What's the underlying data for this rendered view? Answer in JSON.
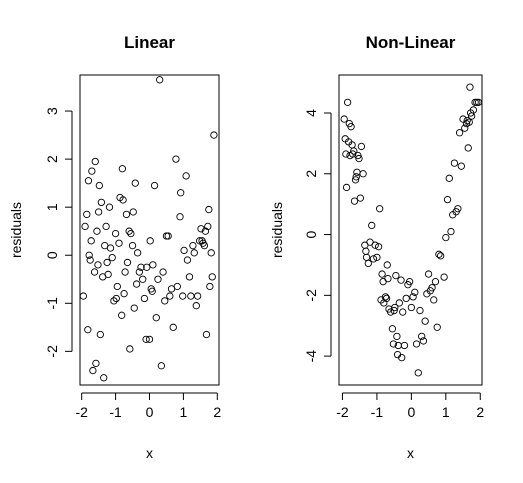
{
  "chart_data": [
    {
      "type": "scatter",
      "title": "Linear",
      "xlabel": "x",
      "ylabel": "residuals",
      "xlim": [
        -2.05,
        2.05
      ],
      "ylim": [
        -2.7,
        3.75
      ],
      "xticks": [
        -2,
        -1,
        0,
        1,
        2
      ],
      "yticks": [
        -2,
        -1,
        0,
        1,
        2,
        3
      ],
      "grid": false,
      "legend": "none",
      "points": [
        [
          -1.95,
          -0.85
        ],
        [
          -1.9,
          0.6
        ],
        [
          -1.85,
          0.85
        ],
        [
          -1.82,
          -1.55
        ],
        [
          -1.8,
          1.55
        ],
        [
          -1.78,
          0.0
        ],
        [
          -1.75,
          -0.1
        ],
        [
          -1.72,
          0.3
        ],
        [
          -1.7,
          1.75
        ],
        [
          -1.67,
          -2.4
        ],
        [
          -1.62,
          -0.35
        ],
        [
          -1.6,
          1.95
        ],
        [
          -1.58,
          -2.25
        ],
        [
          -1.55,
          0.5
        ],
        [
          -1.52,
          -0.2
        ],
        [
          -1.5,
          0.9
        ],
        [
          -1.48,
          1.45
        ],
        [
          -1.45,
          -1.65
        ],
        [
          -1.42,
          1.1
        ],
        [
          -1.38,
          -0.45
        ],
        [
          -1.35,
          -2.55
        ],
        [
          -1.32,
          0.2
        ],
        [
          -1.28,
          0.6
        ],
        [
          -1.25,
          -0.15
        ],
        [
          -1.22,
          -0.4
        ],
        [
          -1.18,
          1.0
        ],
        [
          -1.15,
          0.15
        ],
        [
          -1.1,
          -0.05
        ],
        [
          -1.05,
          -0.95
        ],
        [
          -1.0,
          0.45
        ],
        [
          -0.98,
          -0.9
        ],
        [
          -0.95,
          -0.65
        ],
        [
          -0.9,
          0.25
        ],
        [
          -0.87,
          1.2
        ],
        [
          -0.82,
          -1.25
        ],
        [
          -0.8,
          1.8
        ],
        [
          -0.78,
          1.15
        ],
        [
          -0.75,
          -0.8
        ],
        [
          -0.72,
          -0.35
        ],
        [
          -0.68,
          0.85
        ],
        [
          -0.65,
          -0.15
        ],
        [
          -0.6,
          0.5
        ],
        [
          -0.58,
          -1.95
        ],
        [
          -0.55,
          0.45
        ],
        [
          -0.5,
          0.2
        ],
        [
          -0.48,
          0.9
        ],
        [
          -0.45,
          -1.1
        ],
        [
          -0.42,
          1.5
        ],
        [
          -0.38,
          -0.6
        ],
        [
          -0.35,
          0.05
        ],
        [
          -0.3,
          -0.35
        ],
        [
          -0.25,
          -0.25
        ],
        [
          -0.2,
          -0.5
        ],
        [
          -0.15,
          -0.9
        ],
        [
          -0.1,
          -1.75
        ],
        [
          -0.08,
          -0.25
        ],
        [
          0.0,
          -1.75
        ],
        [
          0.02,
          0.3
        ],
        [
          0.05,
          -0.7
        ],
        [
          0.08,
          -0.75
        ],
        [
          0.1,
          -0.2
        ],
        [
          0.15,
          1.45
        ],
        [
          0.2,
          -1.3
        ],
        [
          0.25,
          -0.5
        ],
        [
          0.3,
          3.65
        ],
        [
          0.35,
          -2.3
        ],
        [
          0.4,
          -0.35
        ],
        [
          0.45,
          -0.95
        ],
        [
          0.5,
          0.4
        ],
        [
          0.55,
          0.4
        ],
        [
          0.6,
          -0.85
        ],
        [
          0.65,
          -0.7
        ],
        [
          0.7,
          -1.5
        ],
        [
          0.78,
          2.0
        ],
        [
          0.82,
          -0.65
        ],
        [
          0.9,
          0.8
        ],
        [
          0.92,
          1.3
        ],
        [
          0.98,
          -0.85
        ],
        [
          1.02,
          0.1
        ],
        [
          1.08,
          1.65
        ],
        [
          1.12,
          -0.1
        ],
        [
          1.18,
          -0.45
        ],
        [
          1.22,
          -0.85
        ],
        [
          1.28,
          0.2
        ],
        [
          1.32,
          0.05
        ],
        [
          1.38,
          -1.05
        ],
        [
          1.42,
          -0.85
        ],
        [
          1.48,
          0.3
        ],
        [
          1.52,
          0.55
        ],
        [
          1.55,
          0.3
        ],
        [
          1.58,
          0.25
        ],
        [
          1.62,
          0.2
        ],
        [
          1.65,
          0.5
        ],
        [
          1.68,
          -1.65
        ],
        [
          1.72,
          0.6
        ],
        [
          1.75,
          0.95
        ],
        [
          1.78,
          -0.65
        ],
        [
          1.82,
          0.05
        ],
        [
          1.85,
          -0.45
        ],
        [
          1.9,
          2.5
        ]
      ]
    },
    {
      "type": "scatter",
      "title": "Non-Linear",
      "xlabel": "x",
      "ylabel": "residuals",
      "xlim": [
        -2.1,
        2.05
      ],
      "ylim": [
        -4.95,
        5.25
      ],
      "xticks": [
        -2,
        -1,
        0,
        1,
        2
      ],
      "yticks": [
        -4,
        -2,
        0,
        2,
        4
      ],
      "grid": false,
      "legend": "none",
      "points": [
        [
          -1.95,
          3.8
        ],
        [
          -1.92,
          3.15
        ],
        [
          -1.9,
          2.65
        ],
        [
          -1.88,
          1.55
        ],
        [
          -1.85,
          4.35
        ],
        [
          -1.82,
          3.05
        ],
        [
          -1.8,
          3.65
        ],
        [
          -1.78,
          2.6
        ],
        [
          -1.75,
          3.55
        ],
        [
          -1.72,
          2.95
        ],
        [
          -1.7,
          2.65
        ],
        [
          -1.67,
          2.75
        ],
        [
          -1.65,
          1.1
        ],
        [
          -1.62,
          1.8
        ],
        [
          -1.6,
          1.9
        ],
        [
          -1.58,
          2.05
        ],
        [
          -1.55,
          2.6
        ],
        [
          -1.52,
          2.5
        ],
        [
          -1.48,
          1.2
        ],
        [
          -1.45,
          2.9
        ],
        [
          -1.4,
          2.0
        ],
        [
          -1.35,
          -0.35
        ],
        [
          -1.32,
          -0.55
        ],
        [
          -1.3,
          -0.75
        ],
        [
          -1.25,
          -0.95
        ],
        [
          -1.2,
          -0.25
        ],
        [
          -1.15,
          0.3
        ],
        [
          -1.1,
          -0.8
        ],
        [
          -1.05,
          -0.35
        ],
        [
          -1.0,
          -0.75
        ],
        [
          -0.95,
          -0.4
        ],
        [
          -0.92,
          0.85
        ],
        [
          -0.88,
          -2.15
        ],
        [
          -0.85,
          -1.3
        ],
        [
          -0.82,
          -1.55
        ],
        [
          -0.8,
          -2.25
        ],
        [
          -0.75,
          -2.05
        ],
        [
          -0.72,
          -2.1
        ],
        [
          -0.7,
          -1.0
        ],
        [
          -0.68,
          -1.45
        ],
        [
          -0.65,
          -2.45
        ],
        [
          -0.6,
          -2.55
        ],
        [
          -0.55,
          -3.1
        ],
        [
          -0.52,
          -3.6
        ],
        [
          -0.5,
          -2.5
        ],
        [
          -0.48,
          -2.4
        ],
        [
          -0.45,
          -1.35
        ],
        [
          -0.42,
          -3.35
        ],
        [
          -0.4,
          -3.95
        ],
        [
          -0.38,
          -3.65
        ],
        [
          -0.35,
          -2.25
        ],
        [
          -0.3,
          -1.5
        ],
        [
          -0.28,
          -4.05
        ],
        [
          -0.25,
          -2.55
        ],
        [
          -0.2,
          -3.65
        ],
        [
          -0.15,
          -2.1
        ],
        [
          -0.1,
          -1.65
        ],
        [
          -0.05,
          -1.55
        ],
        [
          0.0,
          -2.4
        ],
        [
          0.05,
          -2.05
        ],
        [
          0.1,
          -1.9
        ],
        [
          0.15,
          -3.6
        ],
        [
          0.2,
          -4.55
        ],
        [
          0.25,
          -2.5
        ],
        [
          0.3,
          -3.35
        ],
        [
          0.35,
          -3.5
        ],
        [
          0.4,
          -2.85
        ],
        [
          0.45,
          -1.95
        ],
        [
          0.5,
          -1.3
        ],
        [
          0.55,
          -1.85
        ],
        [
          0.6,
          -1.75
        ],
        [
          0.65,
          -2.15
        ],
        [
          0.7,
          -1.55
        ],
        [
          0.75,
          -3.05
        ],
        [
          0.8,
          -0.65
        ],
        [
          0.85,
          -0.7
        ],
        [
          0.95,
          -1.4
        ],
        [
          1.0,
          -0.1
        ],
        [
          1.05,
          1.15
        ],
        [
          1.1,
          1.85
        ],
        [
          1.15,
          0.1
        ],
        [
          1.2,
          0.65
        ],
        [
          1.25,
          2.35
        ],
        [
          1.3,
          0.75
        ],
        [
          1.35,
          0.85
        ],
        [
          1.4,
          3.35
        ],
        [
          1.45,
          2.25
        ],
        [
          1.5,
          3.8
        ],
        [
          1.55,
          3.5
        ],
        [
          1.6,
          3.65
        ],
        [
          1.62,
          3.75
        ],
        [
          1.65,
          2.85
        ],
        [
          1.68,
          3.7
        ],
        [
          1.7,
          4.85
        ],
        [
          1.72,
          4.0
        ],
        [
          1.75,
          3.9
        ],
        [
          1.8,
          4.1
        ],
        [
          1.85,
          4.35
        ],
        [
          1.9,
          4.35
        ],
        [
          1.95,
          4.35
        ]
      ]
    }
  ]
}
